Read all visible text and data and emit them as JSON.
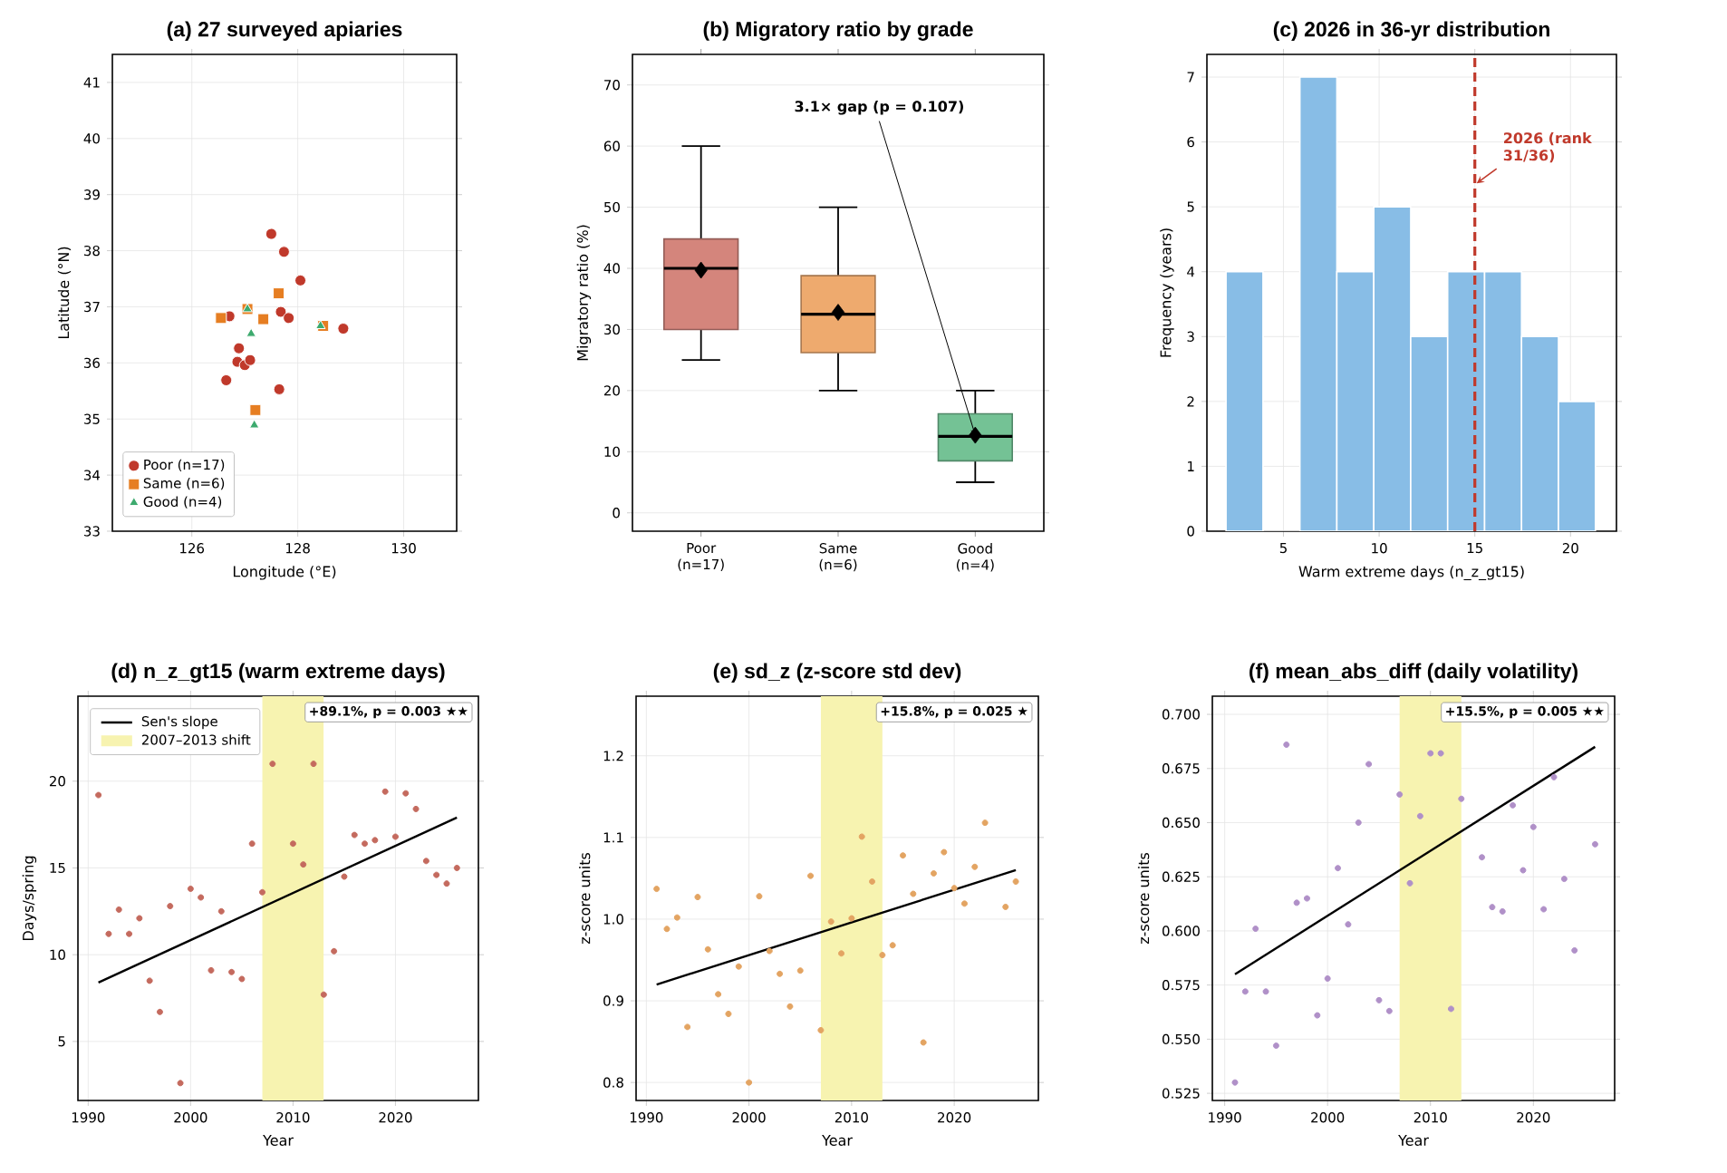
{
  "chart_data": [
    {
      "type": "scatter",
      "title": "(a) 27 surveyed apiaries",
      "xlabel": "Longitude (°E)",
      "ylabel": "Latitude (°N)",
      "xlim": [
        124.5,
        131
      ],
      "ylim": [
        33,
        41.5
      ],
      "xticks": [
        126,
        128,
        130
      ],
      "yticks": [
        33,
        34,
        35,
        36,
        37,
        38,
        39,
        40,
        41
      ],
      "grid": true,
      "legend": "bottom left",
      "series": [
        {
          "name": "Poor (n=17)",
          "color": "#c0392b",
          "marker": "circle",
          "x": [
            127.5,
            127.74,
            128.05,
            127.68,
            127.83,
            128.86,
            126.71,
            126.89,
            126.86,
            127.0,
            127.1,
            126.65,
            127.65
          ],
          "values": [
            38.3,
            37.98,
            37.47,
            36.91,
            36.8,
            36.61,
            36.83,
            36.26,
            36.02,
            35.96,
            36.05,
            35.69,
            35.53
          ]
        },
        {
          "name": "Same (n=6)",
          "color": "#e67e22",
          "marker": "square",
          "x": [
            126.55,
            127.64,
            127.35,
            128.48,
            127.2,
            127.05
          ],
          "values": [
            36.8,
            37.24,
            36.78,
            36.66,
            35.16,
            36.96
          ]
        },
        {
          "name": "Good (n=4)",
          "color": "#3daa6e",
          "marker": "triangle",
          "x": [
            127.05,
            127.12,
            128.43,
            127.18
          ],
          "values": [
            36.96,
            36.52,
            36.66,
            34.89
          ]
        }
      ]
    },
    {
      "type": "box",
      "title": "(b) Migratory ratio by grade",
      "ylabel": "Migratory ratio (%)",
      "categories": [
        "Poor (n=17)",
        "Same (n=6)",
        "Good (n=4)"
      ],
      "colors": [
        "#d4857c",
        "#eeaa6e",
        "#74c295"
      ],
      "ylim": [
        -3,
        75
      ],
      "yticks": [
        0,
        10,
        20,
        30,
        40,
        50,
        60,
        70
      ],
      "grid": "y",
      "boxes": [
        {
          "low": 25,
          "q1": 30,
          "median": 40,
          "q3": 44.8,
          "high": 60,
          "mean": 39.7
        },
        {
          "low": 20,
          "q1": 26.2,
          "median": 32.5,
          "q3": 38.8,
          "high": 50,
          "mean": 32.8
        },
        {
          "low": 5,
          "q1": 8.5,
          "median": 12.5,
          "q3": 16.2,
          "high": 20,
          "mean": 12.7
        }
      ],
      "annotations": [
        "3.1× gap (p = 0.107)"
      ]
    },
    {
      "type": "histogram",
      "title": "(c) 2026 in 36-yr distribution",
      "xlabel": "Warm extreme days (n_z_gt15)",
      "ylabel": "Frequency (years)",
      "color": "#88bde6",
      "bins": [
        2,
        3.93,
        5.86,
        7.79,
        9.72,
        11.65,
        13.58,
        15.51,
        17.44,
        19.37,
        21.3
      ],
      "values": [
        4,
        0,
        7,
        4,
        5,
        3,
        4,
        4,
        3,
        2
      ],
      "xlim": [
        1,
        22.4
      ],
      "ylim": [
        0,
        7.35
      ],
      "xticks": [
        5,
        10,
        15,
        20
      ],
      "yticks": [
        0,
        1,
        2,
        3,
        4,
        5,
        6,
        7
      ],
      "grid": true,
      "ref_lines": [
        {
          "axis": "x",
          "value": 15,
          "label": "2026 (rank 31/36)",
          "color": "#c0392b",
          "line_style": "dashed"
        }
      ]
    },
    {
      "type": "scatter",
      "title": "(d) n_z_gt15 (warm extreme days)",
      "xlabel": "Year",
      "ylabel": "Days/spring",
      "xlim": [
        1989,
        2028.1
      ],
      "ylim": [
        1.6,
        24.9
      ],
      "xticks": [
        1990,
        2000,
        2010,
        2020
      ],
      "yticks": [
        5,
        10,
        15,
        20
      ],
      "grid": true,
      "legend": "top left",
      "series": [
        {
          "color": "#c46a5e",
          "x": [
            1991,
            1992,
            1993,
            1994,
            1995,
            1996,
            1997,
            1998,
            1999,
            2000,
            2001,
            2002,
            2003,
            2004,
            2005,
            2006,
            2007,
            2008,
            2010,
            2011,
            2012,
            2013,
            2014,
            2015,
            2016,
            2017,
            2018,
            2019,
            2020,
            2021,
            2022,
            2023,
            2024,
            2025,
            2026
          ],
          "values": [
            19.2,
            11.2,
            12.6,
            11.2,
            12.1,
            8.5,
            6.7,
            12.8,
            2.6,
            13.8,
            13.3,
            9.1,
            12.5,
            9.0,
            8.6,
            16.4,
            13.6,
            21.0,
            16.4,
            15.2,
            21.0,
            7.7,
            10.2,
            14.5,
            16.9,
            16.4,
            16.6,
            19.4,
            16.8,
            19.3,
            18.4,
            15.4,
            14.6,
            14.1,
            15.0
          ]
        },
        {
          "type": "line",
          "name": "Sen's slope",
          "color": "#000000",
          "x": [
            1991,
            2026
          ],
          "values": [
            8.4,
            17.9
          ]
        }
      ],
      "bands": [
        {
          "axis": "x",
          "from": 2007,
          "to": 2013,
          "label": "2007–2013 shift",
          "color": "#f7f3b0"
        }
      ],
      "annotations": [
        "+89.1%, p = 0.003 ★★"
      ]
    },
    {
      "type": "scatter",
      "title": "(e) sd_z (z-score std dev)",
      "xlabel": "Year",
      "ylabel": "z-score units",
      "xlim": [
        1989,
        2028.2
      ],
      "ylim": [
        0.778,
        1.273
      ],
      "xticks": [
        1990,
        2000,
        2010,
        2020
      ],
      "yticks": [
        {
          "value": 0.8,
          "label": "0.8"
        },
        {
          "value": 0.9,
          "label": "0.9"
        },
        {
          "value": 1,
          "label": "1.0"
        },
        {
          "value": 1.1,
          "label": "1.1"
        },
        {
          "value": 1.2,
          "label": "1.2"
        }
      ],
      "grid": true,
      "series": [
        {
          "color": "#e3a462",
          "x": [
            1991,
            1992,
            1993,
            1994,
            1995,
            1996,
            1997,
            1998,
            1999,
            2000,
            2001,
            2002,
            2003,
            2004,
            2005,
            2006,
            2007,
            2008,
            2009,
            2010,
            2011,
            2012,
            2013,
            2014,
            2015,
            2016,
            2017,
            2018,
            2019,
            2020,
            2021,
            2022,
            2023,
            2025,
            2026
          ],
          "values": [
            1.037,
            0.988,
            1.002,
            0.868,
            1.027,
            0.963,
            0.908,
            0.884,
            0.942,
            0.8,
            1.028,
            0.961,
            0.933,
            0.893,
            0.937,
            1.053,
            0.864,
            0.997,
            0.958,
            1.001,
            1.101,
            1.046,
            0.956,
            0.968,
            1.078,
            1.031,
            0.849,
            1.056,
            1.082,
            1.038,
            1.019,
            1.064,
            1.118,
            1.015,
            1.046
          ]
        },
        {
          "type": "line",
          "color": "#000000",
          "x": [
            1991,
            2026
          ],
          "values": [
            0.92,
            1.06
          ]
        }
      ],
      "bands": [
        {
          "axis": "x",
          "from": 2007,
          "to": 2013,
          "color": "#f7f3b0"
        }
      ],
      "annotations": [
        "+15.8%, p = 0.025 ★"
      ]
    },
    {
      "type": "scatter",
      "title": "(f) mean_abs_diff (daily volatility)",
      "xlabel": "Year",
      "ylabel": "z-score units",
      "xlim": [
        1988.8,
        2027.9
      ],
      "ylim": [
        0.5217,
        0.7084
      ],
      "xticks": [
        1990,
        2000,
        2010,
        2020
      ],
      "yticks": [
        {
          "value": 0.525,
          "label": "0.525"
        },
        {
          "value": 0.55,
          "label": "0.550"
        },
        {
          "value": 0.575,
          "label": "0.575"
        },
        {
          "value": 0.6,
          "label": "0.600"
        },
        {
          "value": 0.625,
          "label": "0.625"
        },
        {
          "value": 0.65,
          "label": "0.650"
        },
        {
          "value": 0.675,
          "label": "0.675"
        },
        {
          "value": 0.7,
          "label": "0.700"
        }
      ],
      "grid": true,
      "series": [
        {
          "color": "#b090c8",
          "x": [
            1991,
            1992,
            1993,
            1994,
            1995,
            1996,
            1997,
            1998,
            1999,
            2000,
            2001,
            2002,
            2003,
            2004,
            2005,
            2006,
            2007,
            2008,
            2009,
            2010,
            2011,
            2012,
            2013,
            2015,
            2016,
            2017,
            2018,
            2019,
            2020,
            2021,
            2022,
            2023,
            2024,
            2026
          ],
          "values": [
            0.53,
            0.572,
            0.601,
            0.572,
            0.547,
            0.686,
            0.613,
            0.615,
            0.561,
            0.578,
            0.629,
            0.603,
            0.65,
            0.677,
            0.568,
            0.563,
            0.663,
            0.622,
            0.653,
            0.682,
            0.682,
            0.564,
            0.661,
            0.634,
            0.611,
            0.609,
            0.658,
            0.628,
            0.648,
            0.61,
            0.671,
            0.624,
            0.591,
            0.64
          ]
        },
        {
          "type": "line",
          "color": "#000000",
          "x": [
            1991,
            2026
          ],
          "values": [
            0.58,
            0.685
          ]
        }
      ],
      "bands": [
        {
          "axis": "x",
          "from": 2007,
          "to": 2013,
          "color": "#f7f3b0"
        }
      ],
      "annotations": [
        "+15.5%, p = 0.005 ★★"
      ]
    }
  ]
}
